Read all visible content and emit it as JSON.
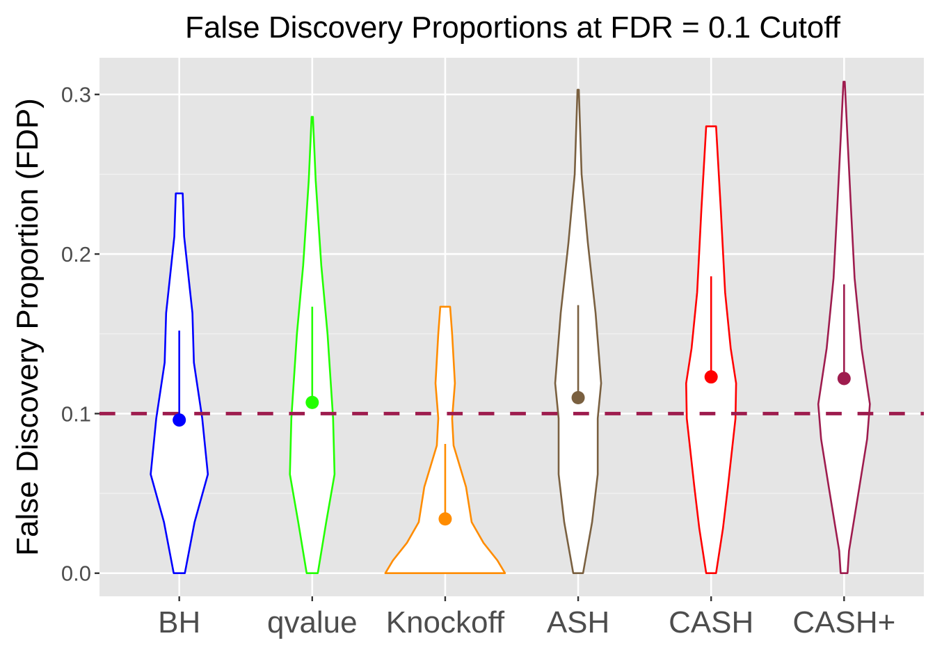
{
  "chart_data": {
    "type": "violin",
    "title": "False Discovery Proportions at FDR = 0.1 Cutoff",
    "xlabel": "",
    "ylabel": "False Discovery Proportion (FDP)",
    "ylim": [
      -0.0145,
      0.323
    ],
    "yticks": [
      0.0,
      0.1,
      0.2,
      0.3
    ],
    "ytick_labels": [
      "0.0",
      "0.1",
      "0.2",
      "0.3"
    ],
    "grid": true,
    "reference_line": {
      "value": 0.1,
      "style": "dashed",
      "color": "#9E1C4E"
    },
    "categories": [
      "BH",
      "qvalue",
      "Knockoff",
      "ASH",
      "CASH",
      "CASH+"
    ],
    "series": [
      {
        "name": "BH",
        "color": "#0000FF",
        "point": 0.096,
        "upper": 0.152,
        "violin_halfwidth": [
          [
            0.238,
            0.026
          ],
          [
            0.211,
            0.037
          ],
          [
            0.163,
            0.099
          ],
          [
            0.132,
            0.11
          ],
          [
            0.097,
            0.173
          ],
          [
            0.062,
            0.215
          ],
          [
            0.032,
            0.115
          ],
          [
            0.0,
            0.042
          ]
        ]
      },
      {
        "name": "qvalue",
        "color": "#22FF00",
        "point": 0.107,
        "upper": 0.167,
        "violin_halfwidth": [
          [
            0.286,
            0.005
          ],
          [
            0.246,
            0.026
          ],
          [
            0.193,
            0.068
          ],
          [
            0.15,
            0.115
          ],
          [
            0.097,
            0.157
          ],
          [
            0.062,
            0.168
          ],
          [
            0.032,
            0.105
          ],
          [
            0.0,
            0.042
          ]
        ]
      },
      {
        "name": "Knockoff",
        "color": "#FF8C00",
        "point": 0.034,
        "upper": 0.081,
        "violin_halfwidth": [
          [
            0.167,
            0.037
          ],
          [
            0.15,
            0.052
          ],
          [
            0.119,
            0.073
          ],
          [
            0.097,
            0.052
          ],
          [
            0.08,
            0.063
          ],
          [
            0.054,
            0.157
          ],
          [
            0.032,
            0.199
          ],
          [
            0.019,
            0.288
          ],
          [
            0.008,
            0.393
          ],
          [
            0.0,
            0.45
          ]
        ]
      },
      {
        "name": "ASH",
        "color": "#7A6040",
        "point": 0.11,
        "upper": 0.168,
        "violin_halfwidth": [
          [
            0.303,
            0.005
          ],
          [
            0.25,
            0.026
          ],
          [
            0.207,
            0.073
          ],
          [
            0.163,
            0.131
          ],
          [
            0.119,
            0.173
          ],
          [
            0.097,
            0.147
          ],
          [
            0.062,
            0.147
          ],
          [
            0.032,
            0.105
          ],
          [
            0.0,
            0.037
          ]
        ]
      },
      {
        "name": "CASH",
        "color": "#FF0000",
        "point": 0.123,
        "upper": 0.186,
        "violin_halfwidth": [
          [
            0.28,
            0.037
          ],
          [
            0.228,
            0.073
          ],
          [
            0.176,
            0.105
          ],
          [
            0.141,
            0.147
          ],
          [
            0.119,
            0.188
          ],
          [
            0.097,
            0.183
          ],
          [
            0.054,
            0.126
          ],
          [
            0.028,
            0.089
          ],
          [
            0.0,
            0.037
          ]
        ]
      },
      {
        "name": "CASH+",
        "color": "#9E1C4E",
        "point": 0.122,
        "upper": 0.181,
        "violin_halfwidth": [
          [
            0.308,
            0.005
          ],
          [
            0.272,
            0.026
          ],
          [
            0.228,
            0.052
          ],
          [
            0.185,
            0.079
          ],
          [
            0.141,
            0.131
          ],
          [
            0.106,
            0.194
          ],
          [
            0.084,
            0.173
          ],
          [
            0.054,
            0.115
          ],
          [
            0.014,
            0.037
          ],
          [
            0.0,
            0.026
          ]
        ]
      }
    ]
  }
}
